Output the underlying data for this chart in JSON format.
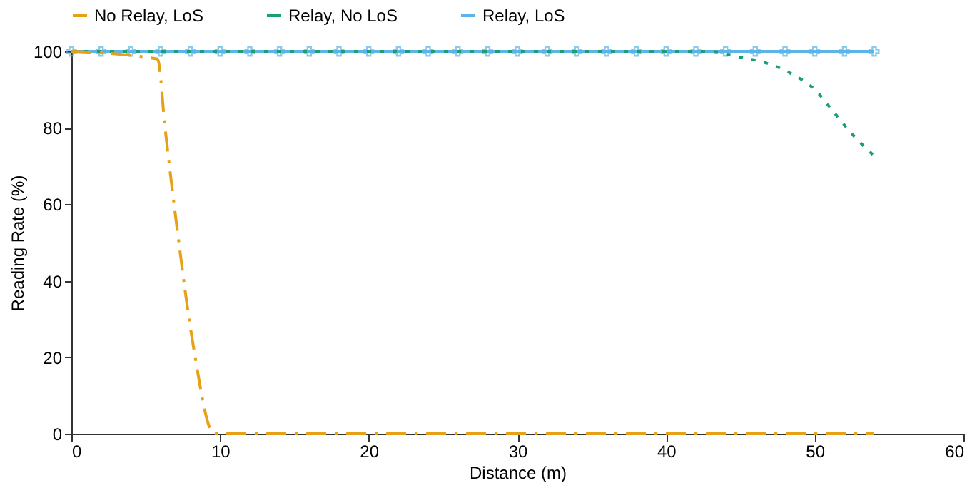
{
  "chart_data": {
    "type": "line",
    "xlabel": "Distance (m)",
    "ylabel": "Reading Rate (%)",
    "xlim": [
      0,
      60
    ],
    "ylim": [
      0,
      100
    ],
    "xticks": [
      0,
      10,
      20,
      30,
      40,
      50,
      60
    ],
    "yticks": [
      0,
      20,
      40,
      60,
      80,
      100
    ],
    "grid": false,
    "legend": "top",
    "series": [
      {
        "name": "No Relay, LoS",
        "color": "#e6a117",
        "line_style": "dashed",
        "marker": "none",
        "x": [
          0,
          5.8,
          6.3,
          7.1,
          8.2,
          9.6,
          20,
          30,
          40,
          54
        ],
        "values": [
          100,
          98,
          80,
          54,
          23,
          0,
          0,
          0,
          0,
          0
        ]
      },
      {
        "name": "Relay, No LoS",
        "color": "#1a9e73",
        "line_style": "dotted",
        "marker": "none",
        "x": [
          0,
          10,
          20,
          30,
          40,
          43,
          44.8,
          46.7,
          48.5,
          50,
          51.3,
          52.6,
          53.9
        ],
        "values": [
          100,
          100,
          100,
          100,
          100,
          100,
          98.6,
          97,
          94,
          90,
          84,
          78,
          73
        ]
      },
      {
        "name": "Relay, LoS",
        "color": "#5bb4e5",
        "line_style": "solid",
        "marker": "cross",
        "x": [
          0,
          2,
          4,
          6,
          8,
          10,
          12,
          14,
          16,
          18,
          20,
          22,
          24,
          26,
          28,
          30,
          32,
          34,
          36,
          38,
          40,
          42,
          44,
          46,
          48,
          50,
          52,
          54
        ],
        "values": [
          100,
          100,
          100,
          100,
          100,
          100,
          100,
          100,
          100,
          100,
          100,
          100,
          100,
          100,
          100,
          100,
          100,
          100,
          100,
          100,
          100,
          100,
          100,
          100,
          100,
          100,
          100,
          100
        ]
      }
    ]
  }
}
